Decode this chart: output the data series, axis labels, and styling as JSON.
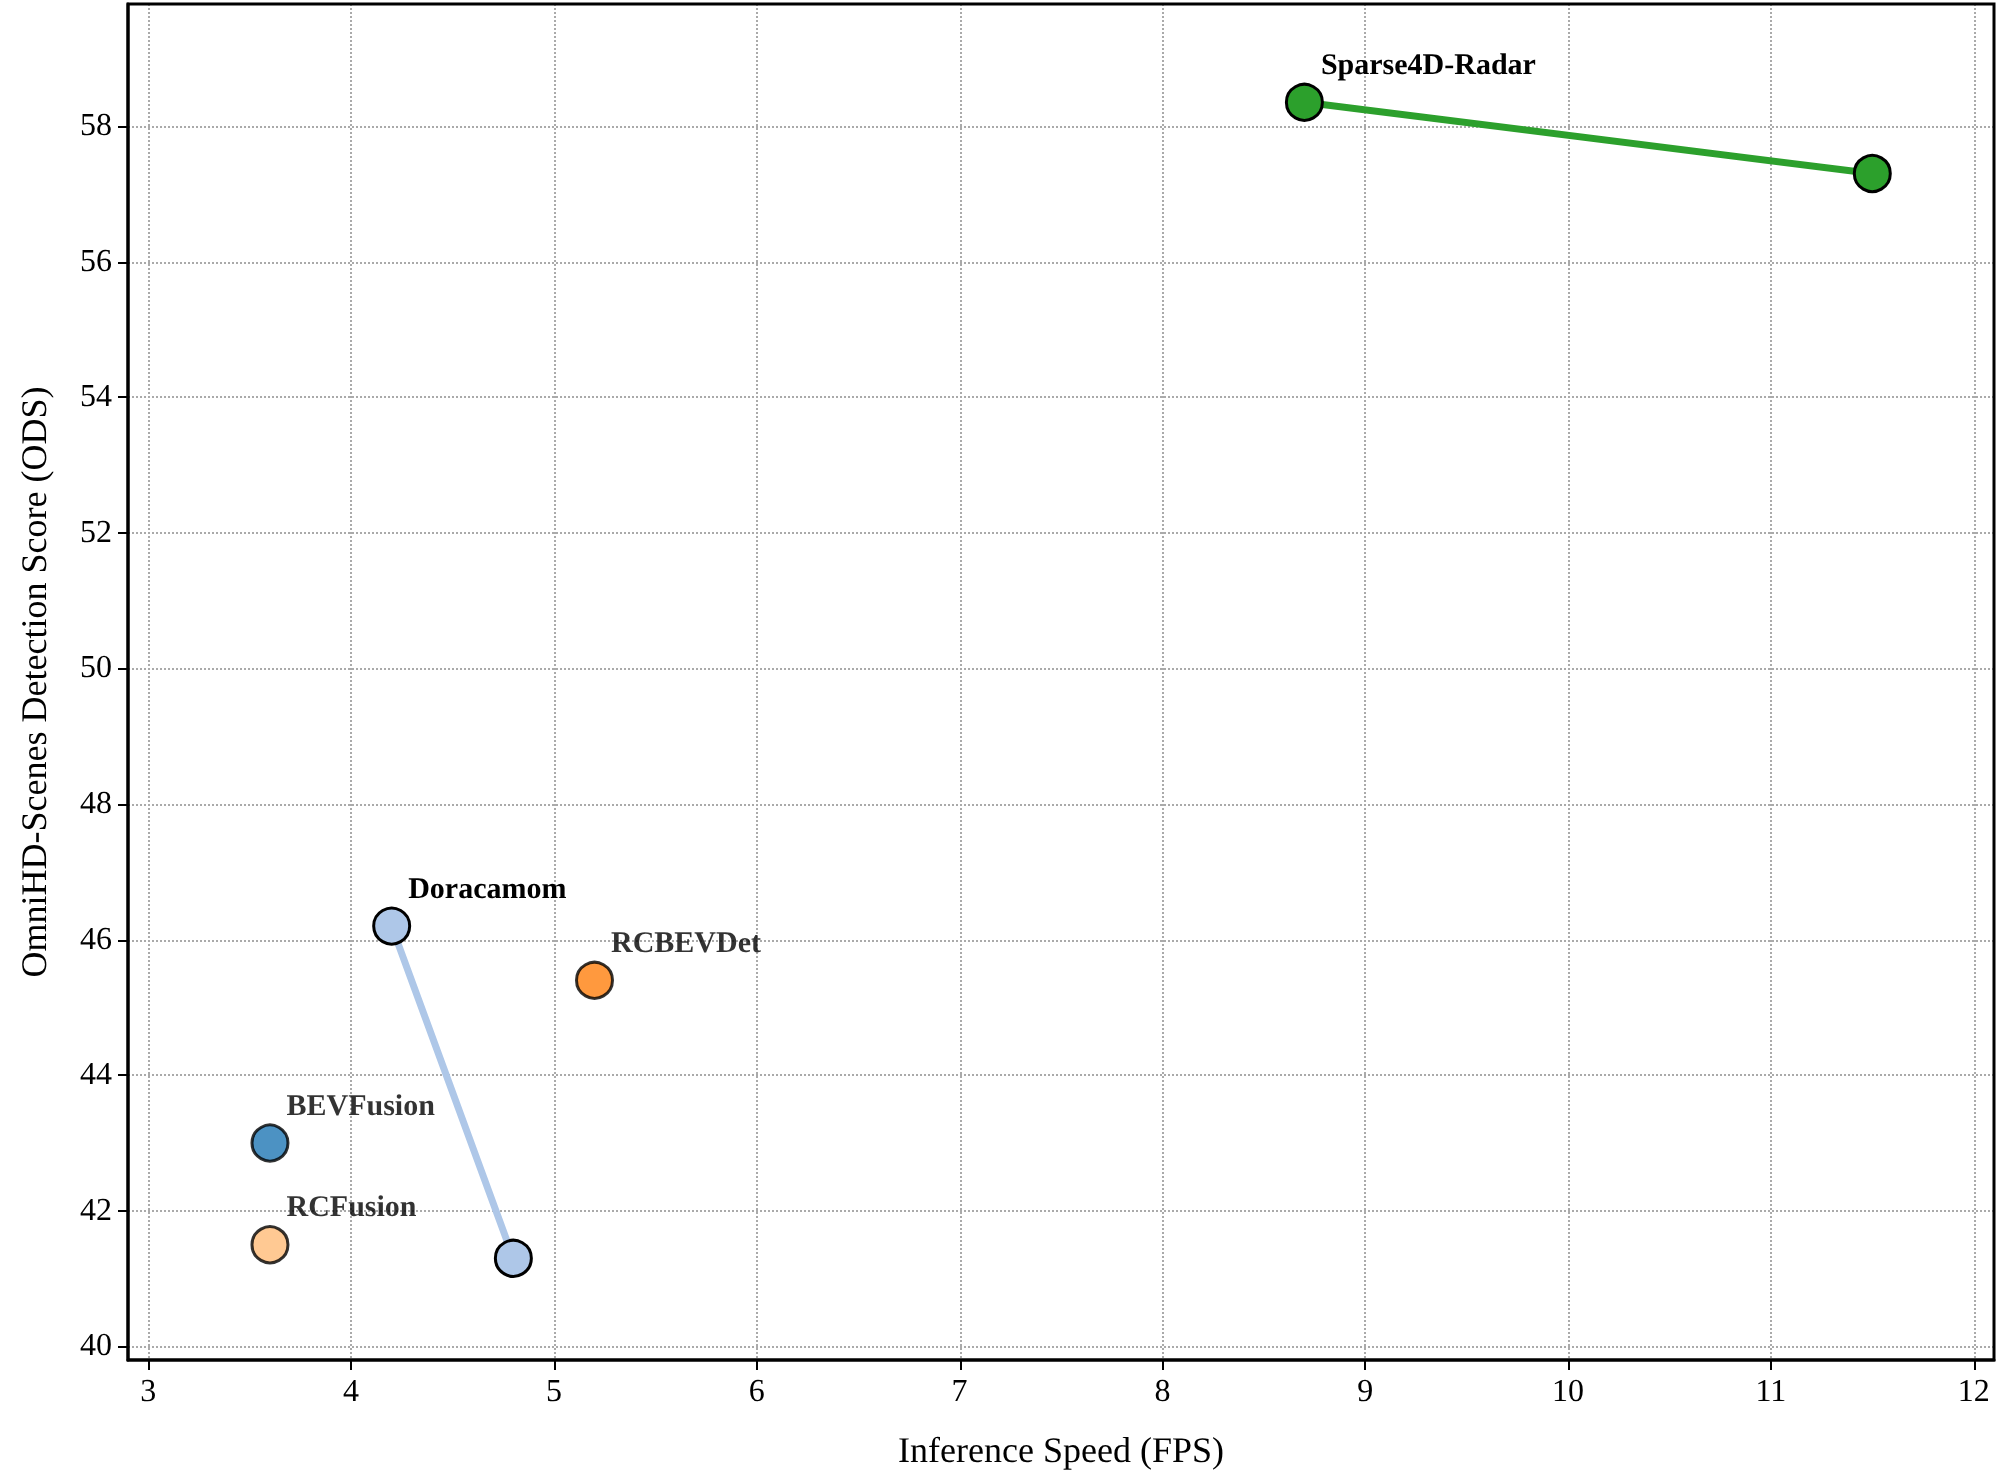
{
  "chart_data": {
    "type": "scatter",
    "xlabel": "Inference Speed (FPS)",
    "ylabel": "OmniHD-Scenes Detection Score (ODS)",
    "xlim": [
      2.9,
      12.1
    ],
    "xticks": [
      3,
      4,
      5,
      6,
      7,
      8,
      9,
      10,
      11,
      12
    ],
    "ylim": [
      39.8,
      59.8
    ],
    "yticks": [
      40,
      42,
      44,
      46,
      48,
      50,
      52,
      54,
      56,
      58
    ],
    "grid": true,
    "legend": false,
    "marker": "circle",
    "series": [
      {
        "name": "Sparse4D-Radar",
        "type": "line",
        "color": "#2ca02c",
        "x": [
          8.7,
          11.5
        ],
        "values": [
          58.35,
          57.3
        ]
      },
      {
        "name": "Doracamom",
        "type": "line",
        "color": "#aec7e8",
        "x": [
          4.2,
          4.8
        ],
        "values": [
          46.2,
          41.3
        ]
      },
      {
        "name": "RCBEVDet",
        "color": "#ff7f0e",
        "x": [
          5.2
        ],
        "values": [
          45.4
        ]
      },
      {
        "name": "BEVFusion",
        "color": "#1f77b4",
        "x": [
          3.6
        ],
        "values": [
          43.0
        ]
      },
      {
        "name": "RCFusion",
        "color": "#ffbb78",
        "x": [
          3.6
        ],
        "values": [
          41.5
        ]
      }
    ]
  }
}
